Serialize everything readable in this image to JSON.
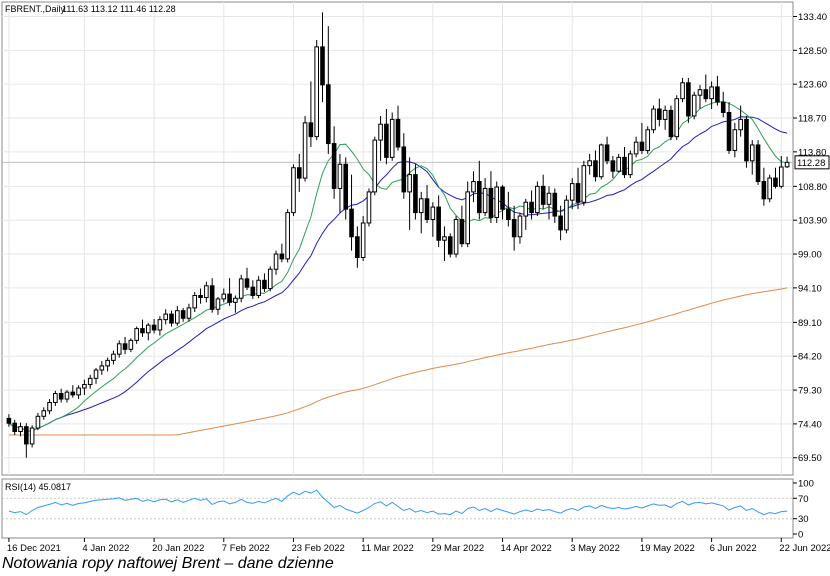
{
  "header": {
    "symbol": "FBRENT.,Daily",
    "ohlc": "111.63 113.12 111.46 112.28"
  },
  "caption": "Notowania ropy naftowej Brent – dane dzienne",
  "colors": {
    "candle": "#000000",
    "ma_short": "#2e9e58",
    "ma_mid": "#1f1fbf",
    "ma_long": "#e08a4a",
    "rsi": "#3399ff",
    "grid": "#e6e6e6",
    "last_price_line": "#c0c0c0"
  },
  "chart_data": [
    {
      "type": "candlestick",
      "title": "",
      "price_label": "112.28",
      "ylim": [
        67.0,
        135.5
      ],
      "y_tick_labels": [
        "133.40",
        "128.50",
        "123.60",
        "118.70",
        "113.80",
        "108.80",
        "103.90",
        "99.00",
        "94.10",
        "89.10",
        "84.20",
        "79.30",
        "74.40",
        "69.50"
      ],
      "x_tick_labels": [
        "16 Dec 2021",
        "4 Jan 2022",
        "20 Jan 2022",
        "7 Feb 2022",
        "23 Feb 2022",
        "11 Mar 2022",
        "29 Mar 2022",
        "14 Apr 2022",
        "3 May 2022",
        "19 May 2022",
        "6 Jun 2022",
        "22 Jun 2022"
      ],
      "x_tick_index": [
        0,
        13,
        25,
        37,
        49,
        61,
        73,
        85,
        97,
        109,
        121,
        133
      ],
      "grid": true,
      "candles_ohlc": [
        [
          75.2,
          75.8,
          74.0,
          74.5
        ],
        [
          74.5,
          75.0,
          72.8,
          73.3
        ],
        [
          73.3,
          74.6,
          72.6,
          74.0
        ],
        [
          74.0,
          74.5,
          69.5,
          71.5
        ],
        [
          71.5,
          74.2,
          71.0,
          73.8
        ],
        [
          73.8,
          76.0,
          73.5,
          75.5
        ],
        [
          75.5,
          76.8,
          75.0,
          76.3
        ],
        [
          76.3,
          78.0,
          75.8,
          77.5
        ],
        [
          77.5,
          79.2,
          77.0,
          78.8
        ],
        [
          78.8,
          79.5,
          77.5,
          78.0
        ],
        [
          78.0,
          79.3,
          77.5,
          79.0
        ],
        [
          79.0,
          80.0,
          78.2,
          78.6
        ],
        [
          78.6,
          80.0,
          78.0,
          79.6
        ],
        [
          79.6,
          80.8,
          78.6,
          80.1
        ],
        [
          80.1,
          81.5,
          79.5,
          81.0
        ],
        [
          81.0,
          82.5,
          80.2,
          82.2
        ],
        [
          82.2,
          83.5,
          81.5,
          82.8
        ],
        [
          82.8,
          84.0,
          82.0,
          83.6
        ],
        [
          83.6,
          85.0,
          83.0,
          84.5
        ],
        [
          84.5,
          86.5,
          84.0,
          86.0
        ],
        [
          86.0,
          87.0,
          84.5,
          85.2
        ],
        [
          85.2,
          86.8,
          84.8,
          86.5
        ],
        [
          86.5,
          88.5,
          86.0,
          88.2
        ],
        [
          88.2,
          89.5,
          87.0,
          87.6
        ],
        [
          87.6,
          89.0,
          86.5,
          88.7
        ],
        [
          88.7,
          89.6,
          87.5,
          88.0
        ],
        [
          88.0,
          90.0,
          87.2,
          89.5
        ],
        [
          89.5,
          91.0,
          88.8,
          90.3
        ],
        [
          90.3,
          90.8,
          88.5,
          89.0
        ],
        [
          89.0,
          91.5,
          88.6,
          90.8
        ],
        [
          90.8,
          91.2,
          89.2,
          89.7
        ],
        [
          89.7,
          91.8,
          89.2,
          91.2
        ],
        [
          91.2,
          93.5,
          90.6,
          93.0
        ],
        [
          93.0,
          94.0,
          91.8,
          92.7
        ],
        [
          92.7,
          95.0,
          92.0,
          94.4
        ],
        [
          94.4,
          95.5,
          90.5,
          91.0
        ],
        [
          91.0,
          92.8,
          90.2,
          92.5
        ],
        [
          92.5,
          94.0,
          92.0,
          93.2
        ],
        [
          93.2,
          95.5,
          91.5,
          92.0
        ],
        [
          92.0,
          93.0,
          90.5,
          92.6
        ],
        [
          92.6,
          96.0,
          92.0,
          95.4
        ],
        [
          95.4,
          97.0,
          93.8,
          94.2
        ],
        [
          94.2,
          95.2,
          92.5,
          93.0
        ],
        [
          93.0,
          95.8,
          92.6,
          95.2
        ],
        [
          95.2,
          96.2,
          93.5,
          94.0
        ],
        [
          94.0,
          97.2,
          93.6,
          96.8
        ],
        [
          96.8,
          99.5,
          96.0,
          99.0
        ],
        [
          99.0,
          100.5,
          97.8,
          98.3
        ],
        [
          98.3,
          105.5,
          97.8,
          105.0
        ],
        [
          105.0,
          112.0,
          104.5,
          111.5
        ],
        [
          111.5,
          113.5,
          108.0,
          110.0
        ],
        [
          110.0,
          119.0,
          109.5,
          118.0
        ],
        [
          118.0,
          124.0,
          114.5,
          116.0
        ],
        [
          116.0,
          130.0,
          115.5,
          129.0
        ],
        [
          129.0,
          134.0,
          121.0,
          123.5
        ],
        [
          123.5,
          132.0,
          113.5,
          115.0
        ],
        [
          115.0,
          117.5,
          107.0,
          108.5
        ],
        [
          108.5,
          113.5,
          105.0,
          112.0
        ],
        [
          112.0,
          113.0,
          104.0,
          105.5
        ],
        [
          105.5,
          110.5,
          99.5,
          101.5
        ],
        [
          101.5,
          103.0,
          97.0,
          98.5
        ],
        [
          98.5,
          104.5,
          98.0,
          103.5
        ],
        [
          103.5,
          108.5,
          103.0,
          108.0
        ],
        [
          108.0,
          116.0,
          107.5,
          115.5
        ],
        [
          115.5,
          119.0,
          112.5,
          117.8
        ],
        [
          117.8,
          120.0,
          112.0,
          113.0
        ],
        [
          113.0,
          119.5,
          112.5,
          118.5
        ],
        [
          118.5,
          120.5,
          114.0,
          114.5
        ],
        [
          114.5,
          116.5,
          107.0,
          108.0
        ],
        [
          108.0,
          113.0,
          102.5,
          110.5
        ],
        [
          110.5,
          112.0,
          104.0,
          105.0
        ],
        [
          105.0,
          108.0,
          102.0,
          107.0
        ],
        [
          107.0,
          109.0,
          103.5,
          104.0
        ],
        [
          104.0,
          106.5,
          101.5,
          105.8
        ],
        [
          105.8,
          107.5,
          100.0,
          101.0
        ],
        [
          101.0,
          103.0,
          98.0,
          101.5
        ],
        [
          101.5,
          102.0,
          98.5,
          99.0
        ],
        [
          99.0,
          104.5,
          98.5,
          104.0
        ],
        [
          104.0,
          106.0,
          100.0,
          100.5
        ],
        [
          100.5,
          109.5,
          100.0,
          108.0
        ],
        [
          108.0,
          111.0,
          106.5,
          109.5
        ],
        [
          109.5,
          112.5,
          104.0,
          105.0
        ],
        [
          105.0,
          110.0,
          104.5,
          108.5
        ],
        [
          108.5,
          111.0,
          103.5,
          104.3
        ],
        [
          104.3,
          109.5,
          103.5,
          108.7
        ],
        [
          108.7,
          109.0,
          104.0,
          105.5
        ],
        [
          105.5,
          108.0,
          103.0,
          104.0
        ],
        [
          104.0,
          106.0,
          99.5,
          101.5
        ],
        [
          101.5,
          105.0,
          100.5,
          104.5
        ],
        [
          104.5,
          107.0,
          102.5,
          106.5
        ],
        [
          106.5,
          108.2,
          104.0,
          105.0
        ],
        [
          105.0,
          109.5,
          104.5,
          108.8
        ],
        [
          108.8,
          110.5,
          105.5,
          106.2
        ],
        [
          106.2,
          108.8,
          104.0,
          107.8
        ],
        [
          107.8,
          108.5,
          103.5,
          104.5
        ],
        [
          104.5,
          106.0,
          101.0,
          102.5
        ],
        [
          102.5,
          107.5,
          102.0,
          106.8
        ],
        [
          106.8,
          110.0,
          105.5,
          109.2
        ],
        [
          109.2,
          111.5,
          105.5,
          106.5
        ],
        [
          106.5,
          112.5,
          106.0,
          111.8
        ],
        [
          111.8,
          113.5,
          110.5,
          112.5
        ],
        [
          112.5,
          114.0,
          109.5,
          110.2
        ],
        [
          110.2,
          115.0,
          109.8,
          114.8
        ],
        [
          114.8,
          116.0,
          112.0,
          112.5
        ],
        [
          112.5,
          113.2,
          110.0,
          111.0
        ],
        [
          111.0,
          113.5,
          110.8,
          113.0
        ],
        [
          113.0,
          114.5,
          110.0,
          110.5
        ],
        [
          110.5,
          114.0,
          110.0,
          113.5
        ],
        [
          113.5,
          116.0,
          113.0,
          115.2
        ],
        [
          115.2,
          118.0,
          113.5,
          114.0
        ],
        [
          114.0,
          117.5,
          113.5,
          117.0
        ],
        [
          117.0,
          120.5,
          116.5,
          120.0
        ],
        [
          120.0,
          121.5,
          117.5,
          118.5
        ],
        [
          118.5,
          120.5,
          117.0,
          119.8
        ],
        [
          119.8,
          120.5,
          115.5,
          116.0
        ],
        [
          116.0,
          122.0,
          115.5,
          121.5
        ],
        [
          121.5,
          124.5,
          121.0,
          123.8
        ],
        [
          123.8,
          124.5,
          118.0,
          119.0
        ],
        [
          119.0,
          122.5,
          118.5,
          122.0
        ],
        [
          122.0,
          123.5,
          120.0,
          122.8
        ],
        [
          122.8,
          125.0,
          121.0,
          121.5
        ],
        [
          121.5,
          124.0,
          120.0,
          123.2
        ],
        [
          123.2,
          124.8,
          120.5,
          121.0
        ],
        [
          121.0,
          122.5,
          118.8,
          119.5
        ],
        [
          119.5,
          121.0,
          113.5,
          114.0
        ],
        [
          114.0,
          118.0,
          113.0,
          117.0
        ],
        [
          117.0,
          120.5,
          116.0,
          118.5
        ],
        [
          118.5,
          119.0,
          111.5,
          112.5
        ],
        [
          112.5,
          115.5,
          110.5,
          114.8
        ],
        [
          114.8,
          115.5,
          109.0,
          109.5
        ],
        [
          109.5,
          111.5,
          106.0,
          107.0
        ],
        [
          107.0,
          110.5,
          106.5,
          110.0
        ],
        [
          110.0,
          111.5,
          108.5,
          108.8
        ],
        [
          108.8,
          113.2,
          108.5,
          111.6
        ],
        [
          111.63,
          113.12,
          111.46,
          112.28
        ]
      ]
    },
    {
      "type": "line",
      "title": "RSI(14) 45.0817",
      "ylim": [
        0,
        100
      ],
      "y_tick_labels": [
        "100",
        "70",
        "30",
        "0"
      ],
      "y_tick_values": [
        100,
        70,
        30,
        0
      ],
      "reference_levels": [
        70,
        30
      ],
      "series": [
        {
          "values": [
            45,
            42,
            44,
            38,
            46,
            52,
            55,
            58,
            62,
            57,
            60,
            56,
            60,
            61,
            64,
            66,
            67,
            68,
            69,
            71,
            66,
            68,
            70,
            64,
            67,
            63,
            67,
            68,
            63,
            67,
            62,
            66,
            70,
            66,
            69,
            58,
            63,
            65,
            59,
            62,
            68,
            62,
            60,
            64,
            61,
            66,
            70,
            64,
            75,
            82,
            77,
            84,
            80,
            86,
            72,
            62,
            52,
            56,
            49,
            45,
            41,
            46,
            52,
            60,
            63,
            55,
            62,
            54,
            46,
            50,
            43,
            46,
            42,
            45,
            39,
            40,
            38,
            45,
            40,
            50,
            53,
            46,
            50,
            44,
            50,
            46,
            43,
            39,
            44,
            47,
            44,
            49,
            46,
            48,
            44,
            41,
            47,
            50,
            46,
            53,
            55,
            50,
            56,
            52,
            50,
            52,
            49,
            51,
            54,
            51,
            55,
            59,
            56,
            57,
            52,
            60,
            64,
            57,
            61,
            62,
            59,
            61,
            58,
            55,
            47,
            52,
            55,
            46,
            50,
            43,
            38,
            42,
            40,
            44,
            45
          ]
        }
      ]
    }
  ]
}
